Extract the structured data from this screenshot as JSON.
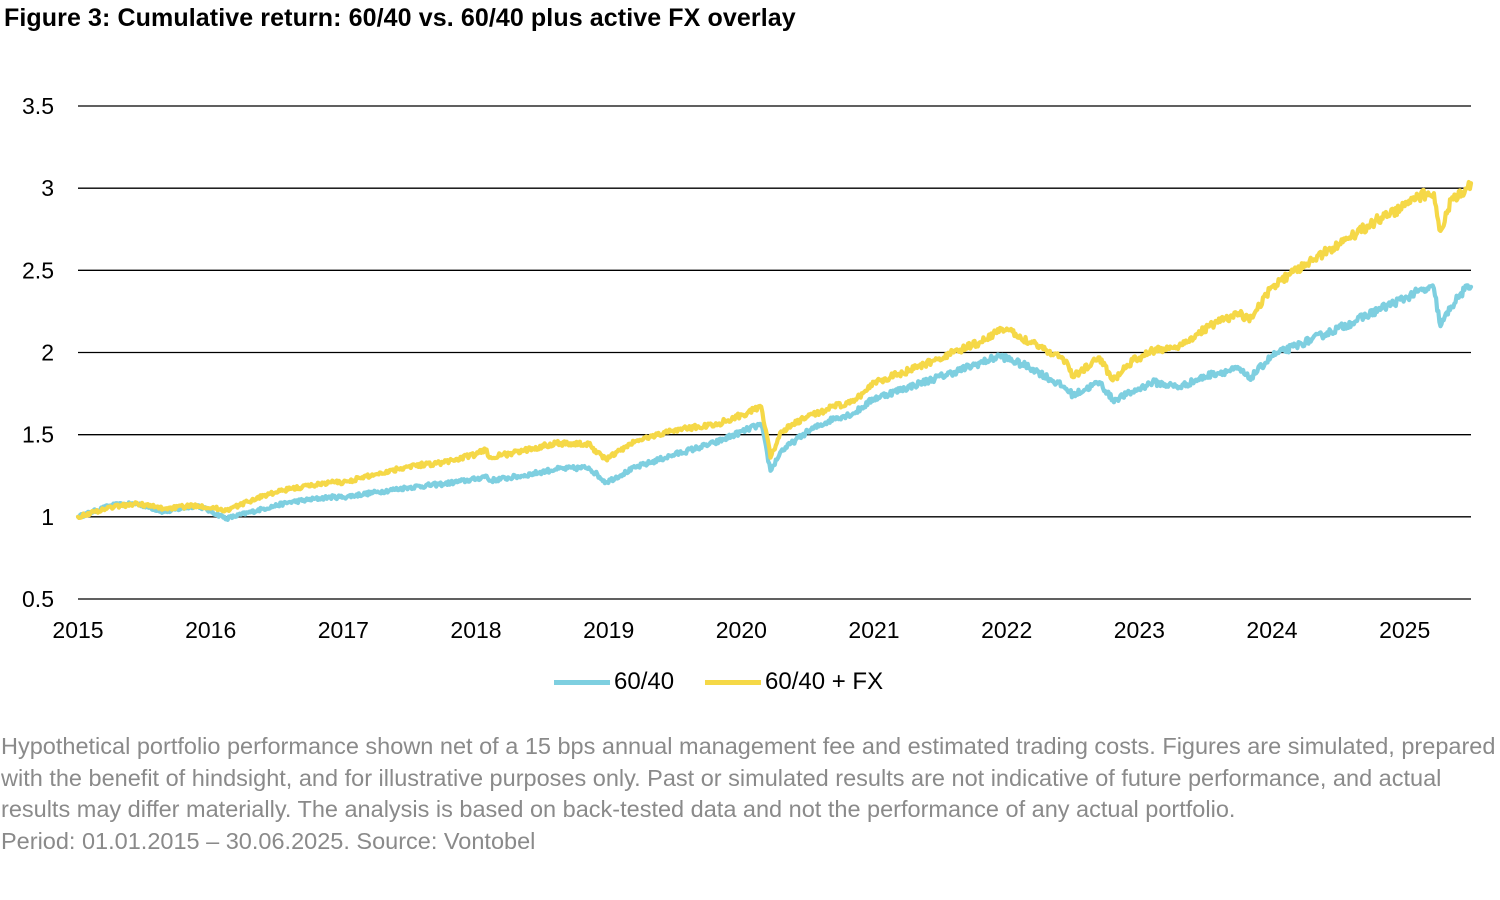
{
  "title": "Figure 3: Cumulative return: 60/40 vs. 60/40 plus active FX overlay",
  "chart_data": {
    "type": "line",
    "title": "Cumulative return: 60/40 vs. 60/40 plus active FX overlay",
    "xlabel": "",
    "ylabel": "",
    "xlim": [
      2015,
      2025.5
    ],
    "ylim": [
      0.5,
      3.5
    ],
    "x_ticks": [
      "2015",
      "2016",
      "2017",
      "2018",
      "2019",
      "2020",
      "2021",
      "2022",
      "2023",
      "2024",
      "2025"
    ],
    "y_ticks": [
      "0.5",
      "1",
      "1.5",
      "2",
      "2.5",
      "3",
      "3.5"
    ],
    "grid": "horizontal",
    "legend_position": "bottom-center",
    "series": [
      {
        "name": "60/40",
        "color": "#7ecfe0",
        "points": [
          [
            2015.0,
            1.0
          ],
          [
            2015.25,
            1.07
          ],
          [
            2015.45,
            1.08
          ],
          [
            2015.65,
            1.03
          ],
          [
            2015.9,
            1.07
          ],
          [
            2016.12,
            0.99
          ],
          [
            2016.4,
            1.05
          ],
          [
            2016.6,
            1.09
          ],
          [
            2016.9,
            1.12
          ],
          [
            2017.0,
            1.12
          ],
          [
            2017.25,
            1.15
          ],
          [
            2017.5,
            1.18
          ],
          [
            2017.75,
            1.2
          ],
          [
            2018.0,
            1.23
          ],
          [
            2018.08,
            1.25
          ],
          [
            2018.1,
            1.22
          ],
          [
            2018.35,
            1.25
          ],
          [
            2018.6,
            1.29
          ],
          [
            2018.85,
            1.3
          ],
          [
            2018.98,
            1.21
          ],
          [
            2019.2,
            1.3
          ],
          [
            2019.5,
            1.38
          ],
          [
            2019.8,
            1.45
          ],
          [
            2020.1,
            1.55
          ],
          [
            2020.15,
            1.56
          ],
          [
            2020.22,
            1.28
          ],
          [
            2020.3,
            1.4
          ],
          [
            2020.5,
            1.52
          ],
          [
            2020.7,
            1.6
          ],
          [
            2020.85,
            1.63
          ],
          [
            2021.0,
            1.72
          ],
          [
            2021.3,
            1.8
          ],
          [
            2021.6,
            1.88
          ],
          [
            2021.85,
            1.95
          ],
          [
            2021.95,
            1.98
          ],
          [
            2022.2,
            1.9
          ],
          [
            2022.45,
            1.78
          ],
          [
            2022.5,
            1.74
          ],
          [
            2022.7,
            1.82
          ],
          [
            2022.8,
            1.71
          ],
          [
            2022.95,
            1.76
          ],
          [
            2023.1,
            1.82
          ],
          [
            2023.3,
            1.79
          ],
          [
            2023.55,
            1.87
          ],
          [
            2023.75,
            1.9
          ],
          [
            2023.83,
            1.84
          ],
          [
            2024.0,
            1.98
          ],
          [
            2024.3,
            2.08
          ],
          [
            2024.6,
            2.18
          ],
          [
            2024.8,
            2.26
          ],
          [
            2025.0,
            2.33
          ],
          [
            2025.1,
            2.37
          ],
          [
            2025.22,
            2.39
          ],
          [
            2025.27,
            2.16
          ],
          [
            2025.35,
            2.28
          ],
          [
            2025.45,
            2.38
          ],
          [
            2025.5,
            2.4
          ]
        ]
      },
      {
        "name": "60/40 + FX",
        "color": "#f5d847",
        "points": [
          [
            2015.0,
            1.0
          ],
          [
            2015.25,
            1.06
          ],
          [
            2015.45,
            1.08
          ],
          [
            2015.65,
            1.05
          ],
          [
            2015.9,
            1.07
          ],
          [
            2016.12,
            1.04
          ],
          [
            2016.4,
            1.13
          ],
          [
            2016.6,
            1.17
          ],
          [
            2016.9,
            1.21
          ],
          [
            2017.0,
            1.21
          ],
          [
            2017.25,
            1.26
          ],
          [
            2017.5,
            1.31
          ],
          [
            2017.75,
            1.33
          ],
          [
            2018.0,
            1.38
          ],
          [
            2018.08,
            1.41
          ],
          [
            2018.1,
            1.36
          ],
          [
            2018.35,
            1.4
          ],
          [
            2018.6,
            1.45
          ],
          [
            2018.85,
            1.44
          ],
          [
            2018.98,
            1.35
          ],
          [
            2019.2,
            1.46
          ],
          [
            2019.5,
            1.53
          ],
          [
            2019.8,
            1.56
          ],
          [
            2020.1,
            1.65
          ],
          [
            2020.15,
            1.67
          ],
          [
            2020.22,
            1.36
          ],
          [
            2020.3,
            1.52
          ],
          [
            2020.5,
            1.61
          ],
          [
            2020.7,
            1.67
          ],
          [
            2020.85,
            1.7
          ],
          [
            2021.0,
            1.82
          ],
          [
            2021.3,
            1.9
          ],
          [
            2021.6,
            2.0
          ],
          [
            2021.85,
            2.08
          ],
          [
            2021.95,
            2.15
          ],
          [
            2022.2,
            2.06
          ],
          [
            2022.45,
            1.95
          ],
          [
            2022.5,
            1.85
          ],
          [
            2022.7,
            1.97
          ],
          [
            2022.8,
            1.83
          ],
          [
            2022.95,
            1.95
          ],
          [
            2023.1,
            2.01
          ],
          [
            2023.3,
            2.04
          ],
          [
            2023.55,
            2.17
          ],
          [
            2023.75,
            2.24
          ],
          [
            2023.83,
            2.19
          ],
          [
            2024.0,
            2.4
          ],
          [
            2024.3,
            2.56
          ],
          [
            2024.6,
            2.71
          ],
          [
            2024.8,
            2.81
          ],
          [
            2025.0,
            2.89
          ],
          [
            2025.1,
            2.95
          ],
          [
            2025.22,
            2.97
          ],
          [
            2025.27,
            2.74
          ],
          [
            2025.35,
            2.93
          ],
          [
            2025.45,
            2.97
          ],
          [
            2025.5,
            3.03
          ]
        ]
      }
    ]
  },
  "legend": [
    {
      "label": "60/40",
      "color": "#7ecfe0"
    },
    {
      "label": "60/40 + FX",
      "color": "#f5d847"
    }
  ],
  "footnote": {
    "disclaimer": "Hypothetical portfolio performance shown net of a 15 bps annual management fee and estimated trading costs. Figures are simulated, prepared with the benefit of hindsight, and for illustrative purposes only. Past or simulated results are not indicative of future performance, and actual results may differ materially. The analysis is based on back-tested data and not the performance of any actual portfolio.",
    "period_source": "Period: 01.01.2015 – 30.06.2025. Source: Vontobel"
  }
}
